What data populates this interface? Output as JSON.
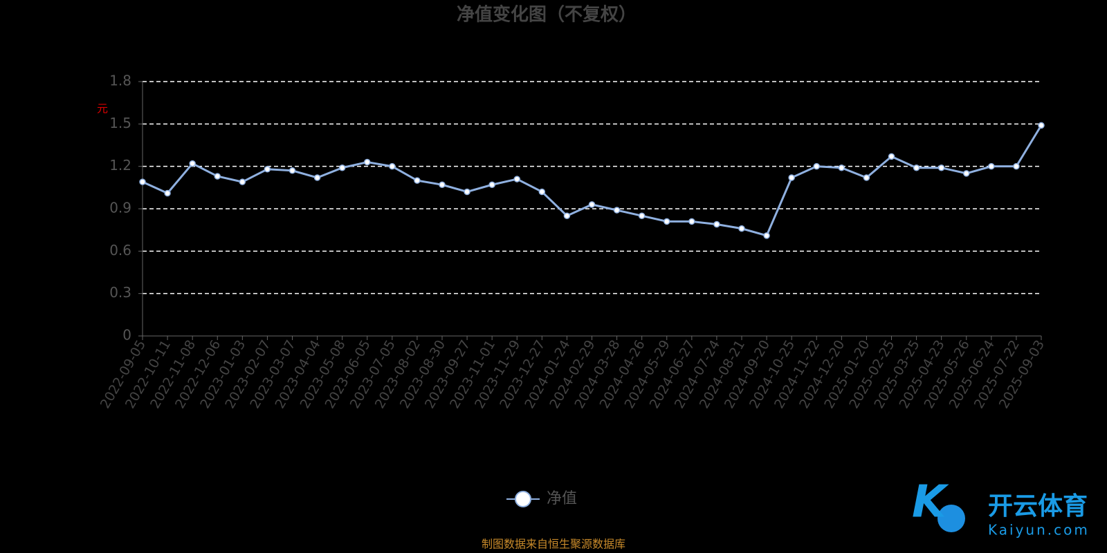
{
  "chart_data": {
    "type": "line",
    "title": "净值变化图（不复权）",
    "y_label": "元",
    "categories": [
      "2022-09-05",
      "2022-10-11",
      "2022-11-08",
      "2022-12-06",
      "2023-01-03",
      "2023-02-07",
      "2023-03-07",
      "2023-04-04",
      "2023-05-08",
      "2023-06-05",
      "2023-07-05",
      "2023-08-02",
      "2023-08-30",
      "2023-09-27",
      "2023-11-01",
      "2023-11-29",
      "2023-12-27",
      "2024-01-24",
      "2024-02-29",
      "2024-03-28",
      "2024-04-26",
      "2024-05-29",
      "2024-06-27",
      "2024-07-24",
      "2024-08-21",
      "2024-09-20",
      "2024-10-25",
      "2024-11-22",
      "2024-12-20",
      "2025-01-20",
      "2025-02-25",
      "2025-03-25",
      "2025-04-23",
      "2025-05-26",
      "2025-06-24",
      "2025-07-22",
      "2025-09-03"
    ],
    "series": [
      {
        "name": "净值",
        "color": "#8fb0e0",
        "values": [
          1.09,
          1.01,
          1.22,
          1.13,
          1.09,
          1.18,
          1.17,
          1.12,
          1.19,
          1.23,
          1.2,
          1.1,
          1.07,
          1.02,
          1.07,
          1.11,
          1.02,
          0.85,
          0.93,
          0.89,
          0.85,
          0.81,
          0.81,
          0.79,
          0.76,
          0.71,
          1.12,
          1.2,
          1.19,
          1.12,
          1.27,
          1.19,
          1.19,
          1.15,
          1.2,
          1.2,
          1.49
        ]
      }
    ],
    "ylim": [
      0,
      1.8
    ],
    "yticks": [
      0,
      0.3,
      0.6,
      0.9,
      1.2,
      1.5,
      1.8
    ],
    "grid": true,
    "source": "制图数据来自恒生聚源数据库"
  },
  "watermark": {
    "brand": "开云体育",
    "site": "Kaiyun.com"
  }
}
